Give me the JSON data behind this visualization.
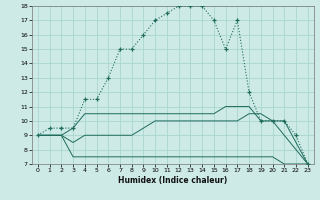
{
  "bg_color": "#cdeae6",
  "grid_color": "#a8d5cf",
  "line_color": "#1e6b5c",
  "xlabel": "Humidex (Indice chaleur)",
  "xlim": [
    -0.5,
    23.5
  ],
  "ylim": [
    7,
    18
  ],
  "xticks": [
    0,
    1,
    2,
    3,
    4,
    5,
    6,
    7,
    8,
    9,
    10,
    11,
    12,
    13,
    14,
    15,
    16,
    17,
    18,
    19,
    20,
    21,
    22,
    23
  ],
  "yticks": [
    7,
    8,
    9,
    10,
    11,
    12,
    13,
    14,
    15,
    16,
    17,
    18
  ],
  "main_x": [
    0,
    1,
    2,
    3,
    4,
    5,
    6,
    7,
    8,
    9,
    10,
    11,
    12,
    13,
    14,
    15,
    16,
    17,
    18,
    19,
    20,
    21,
    22,
    23
  ],
  "main_y": [
    9,
    9.5,
    9.5,
    9.5,
    11.5,
    11.5,
    13,
    15,
    15,
    16,
    17,
    17.5,
    18,
    18,
    18,
    17,
    15,
    17,
    12,
    10,
    10,
    10,
    9,
    7
  ],
  "line_bottom_x": [
    0,
    1,
    2,
    3,
    4,
    5,
    6,
    7,
    8,
    9,
    10,
    11,
    12,
    13,
    14,
    15,
    16,
    17,
    18,
    19,
    20,
    21,
    22,
    23
  ],
  "line_bottom_y": [
    9,
    9,
    9,
    7.5,
    7.5,
    7.5,
    7.5,
    7.5,
    7.5,
    7.5,
    7.5,
    7.5,
    7.5,
    7.5,
    7.5,
    7.5,
    7.5,
    7.5,
    7.5,
    7.5,
    7.5,
    7,
    7,
    7
  ],
  "line_mid_x": [
    0,
    1,
    2,
    3,
    4,
    5,
    6,
    7,
    8,
    9,
    10,
    11,
    12,
    13,
    14,
    15,
    16,
    17,
    18,
    19,
    20,
    21,
    22,
    23
  ],
  "line_mid_y": [
    9,
    9,
    9,
    8.5,
    9,
    9,
    9,
    9,
    9,
    9.5,
    10,
    10,
    10,
    10,
    10,
    10,
    10,
    10,
    10.5,
    10.5,
    10,
    9,
    8,
    7
  ],
  "line_top_x": [
    0,
    1,
    2,
    3,
    4,
    5,
    6,
    7,
    8,
    9,
    10,
    11,
    12,
    13,
    14,
    15,
    16,
    17,
    18,
    19,
    20,
    21,
    22,
    23
  ],
  "line_top_y": [
    9,
    9,
    9,
    9.5,
    10.5,
    10.5,
    10.5,
    10.5,
    10.5,
    10.5,
    10.5,
    10.5,
    10.5,
    10.5,
    10.5,
    10.5,
    11,
    11,
    11,
    10,
    10,
    10,
    8.5,
    7
  ]
}
